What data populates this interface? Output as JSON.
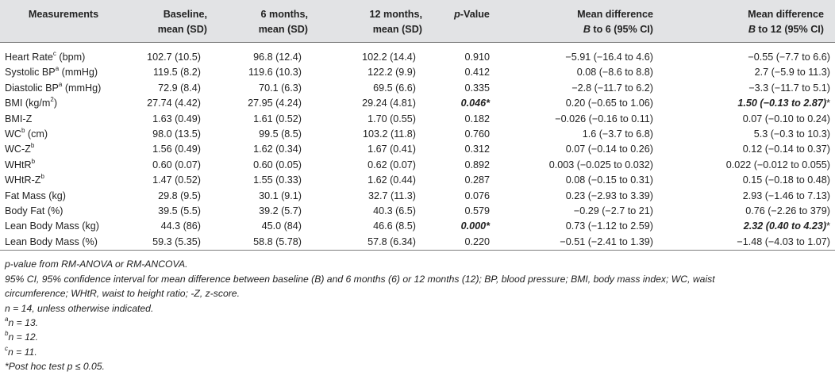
{
  "table": {
    "headers": {
      "measurements": "Measurements",
      "baseline": [
        "Baseline,",
        "mean (SD)"
      ],
      "m6": [
        "6 months,",
        "mean (SD)"
      ],
      "m12": [
        "12 months,",
        "mean (SD)"
      ],
      "pvalue_italic": "p",
      "pvalue_rest": "-Value",
      "md6": [
        "Mean difference",
        "B",
        " to 6 (95% CI)"
      ],
      "md12": [
        "Mean difference",
        "B",
        " to 12 (95% CI)"
      ]
    },
    "rows": [
      {
        "label": "Heart Rate",
        "sup": "c",
        "unit": " (bpm)",
        "baseline": "102.7 (10.5)",
        "m6": "96.8 (12.4)",
        "m12": "102.2 (14.4)",
        "p": "0.910",
        "md6": "−5.91 (−16.4 to 4.6)",
        "md12": "−0.55 (−7.7 to 6.6)"
      },
      {
        "label": "Systolic BP",
        "sup": "a",
        "unit": " (mmHg)",
        "baseline": "119.5 (8.2)",
        "m6": "119.6 (10.3)",
        "m12": "122.2 (9.9)",
        "p": "0.412",
        "md6": "0.08 (−8.6 to 8.8)",
        "md12": "2.7 (−5.9 to 11.3)"
      },
      {
        "label": "Diastolic BP",
        "sup": "a",
        "unit": " (mmHg)",
        "baseline": "72.9 (8.4)",
        "m6": "70.1 (6.3)",
        "m12": "69.5 (6.6)",
        "p": "0.335",
        "md6": "−2.8 (−11.7 to 6.2)",
        "md12": "−3.3 (−11.7 to 5.1)"
      },
      {
        "label": "BMI (kg/m",
        "sup": "2",
        "unit": ")",
        "baseline": "27.74 (4.42)",
        "m6": "27.95 (4.24)",
        "m12": "29.24 (4.81)",
        "p": "0.046*",
        "p_sig": true,
        "md6": "0.20 (−0.65 to 1.06)",
        "md12": "1.50 (−0.13 to 2.87)",
        "md12_sig": true,
        "md12_star": "*"
      },
      {
        "label": "BMI-Z",
        "sup": "",
        "unit": "",
        "baseline": "1.63 (0.49)",
        "m6": "1.61 (0.52)",
        "m12": "1.70 (0.55)",
        "p": "0.182",
        "md6": "−0.026 (−0.16 to 0.11)",
        "md12": "0.07 (−0.10 to 0.24)"
      },
      {
        "label": "WC",
        "sup": "b",
        "unit": " (cm)",
        "baseline": "98.0 (13.5)",
        "m6": "99.5 (8.5)",
        "m12": "103.2 (11.8)",
        "p": "0.760",
        "md6": "1.6 (−3.7 to 6.8)",
        "md12": "5.3 (−0.3 to 10.3)"
      },
      {
        "label": "WC-Z",
        "sup": "b",
        "unit": "",
        "baseline": "1.56 (0.49)",
        "m6": "1.62 (0.34)",
        "m12": "1.67 (0.41)",
        "p": "0.312",
        "md6": "0.07 (−0.14 to 0.26)",
        "md12": "0.12 (−0.14 to 0.37)"
      },
      {
        "label": "WHtR",
        "sup": "b",
        "unit": "",
        "baseline": "0.60 (0.07)",
        "m6": "0.60 (0.05)",
        "m12": "0.62 (0.07)",
        "p": "0.892",
        "md6": "0.003 (−0.025 to 0.032)",
        "md12": "0.022 (−0.012 to 0.055)"
      },
      {
        "label": "WHtR-Z",
        "sup": "b",
        "unit": "",
        "baseline": "1.47 (0.52)",
        "m6": "1.55 (0.33)",
        "m12": "1.62 (0.44)",
        "p": "0.287",
        "md6": "0.08 (−0.15 to 0.31)",
        "md12": "0.15 (−0.18 to 0.48)"
      },
      {
        "label": "Fat Mass (kg)",
        "sup": "",
        "unit": "",
        "baseline": "29.8 (9.5)",
        "m6": "30.1 (9.1)",
        "m12": "32.7 (11.3)",
        "p": "0.076",
        "md6": "0.23 (−2.93 to 3.39)",
        "md12": "2.93 (−1.46 to 7.13)"
      },
      {
        "label": "Body Fat (%)",
        "sup": "",
        "unit": "",
        "baseline": "39.5 (5.5)",
        "m6": "39.2 (5.7)",
        "m12": "40.3 (6.5)",
        "p": "0.579",
        "md6": "−0.29 (−2.7 to 21)",
        "md12": "0.76 (−2.26 to 379)"
      },
      {
        "label": "Lean Body Mass (kg)",
        "sup": "",
        "unit": "",
        "baseline": "44.3 (86)",
        "m6": "45.0 (84)",
        "m12": "46.6 (8.5)",
        "p": "0.000*",
        "p_sig": true,
        "md6": "0.73 (−1.12 to 2.59)",
        "md12": "2.32 (0.40 to 4.23)",
        "md12_sig": true,
        "md12_star": "*"
      },
      {
        "label": "Lean Body Mass (%)",
        "sup": "",
        "unit": "",
        "baseline": "59.3 (5.35)",
        "m6": "58.8 (5.78)",
        "m12": "57.8 (6.34)",
        "p": "0.220",
        "md6": "−0.51 (−2.41 to 1.39)",
        "md12": "−1.48 (−4.03 to 1.07)"
      }
    ]
  },
  "footnotes": {
    "f1": "p-value from RM-ANOVA or RM-ANCOVA.",
    "f2a": "95% CI, 95% confidence interval for mean difference between baseline (B) and 6 months (6) or 12 months (12); BP, blood pressure; BMI, body mass index; WC, waist",
    "f2b": "circumference; WHtR, waist to height ratio; -Z, z-score.",
    "f3": "n = 14, unless otherwise indicated.",
    "fa_sup": "a",
    "fa": "n = 13.",
    "fb_sup": "b",
    "fb": "n = 12.",
    "fc_sup": "c",
    "fc": "n = 11.",
    "fstar": "*Post hoc test p ≤ 0.05."
  }
}
